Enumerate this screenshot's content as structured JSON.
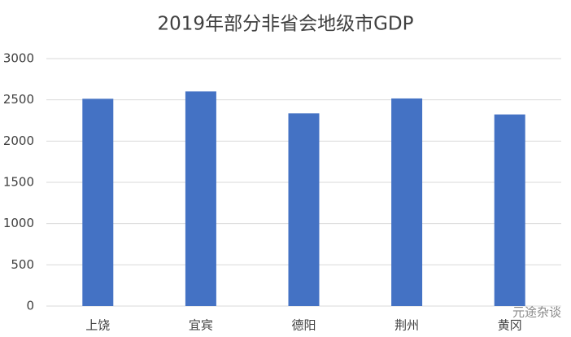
{
  "chart_data": {
    "type": "bar",
    "title": "2019年部分非省会地级市GDP",
    "categories": [
      "上饶",
      "宜宾",
      "德阳",
      "荆州",
      "黄冈"
    ],
    "values": [
      2513,
      2602,
      2336,
      2517,
      2323
    ],
    "color": "#4472c4",
    "ylim": [
      0,
      3000
    ],
    "yticks": [
      0,
      500,
      1000,
      1500,
      2000,
      2500,
      3000
    ],
    "grid": true,
    "watermark": "元途杂谈"
  }
}
